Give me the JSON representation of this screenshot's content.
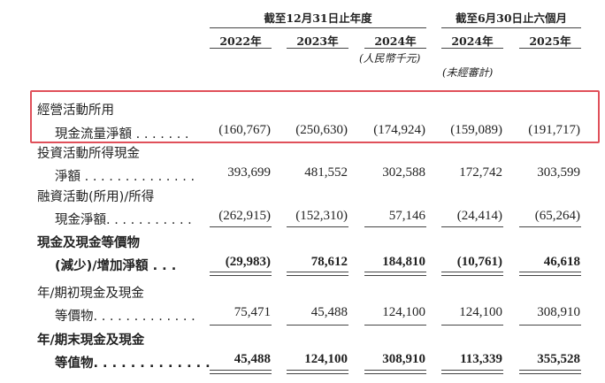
{
  "header": {
    "group_year": "截至12月31日止年度",
    "group_half": "截至6月30日止六個月",
    "columns": [
      "2022年",
      "2023年",
      "2024年",
      "2024年",
      "2025年"
    ],
    "unit_note": "(人民幣千元)",
    "unaudited_note": "(未經審計)"
  },
  "highlight_color": "#e0505a",
  "rows": [
    {
      "label1": "經營活動所用",
      "label2": "現金流量淨額 . . . . . . .",
      "values": [
        "(160,767)",
        "(250,630)",
        "(174,924)",
        "(159,089)",
        "(191,717)"
      ],
      "bold": false
    },
    {
      "label1": "投資活動所得現金",
      "label2": "淨額 . . . . . . . . . . . . . .",
      "values": [
        "393,699",
        "481,552",
        "302,588",
        "172,742",
        "303,599"
      ],
      "bold": false
    },
    {
      "label1": "融資活動(所用)/所得",
      "label2": "現金淨額. . . . . . . . . . .",
      "values": [
        "(262,915)",
        "(152,310)",
        "57,146",
        "(24,414)",
        "(65,264)"
      ],
      "bold": false
    },
    {
      "label1": "現金及現金等價物",
      "label2": "(減少)/增加淨額 . . .",
      "values": [
        "(29,983)",
        "78,612",
        "184,810",
        "(10,761)",
        "46,618"
      ],
      "bold": true
    },
    {
      "label1": "年/期初現金及現金",
      "label2": "等價物. . . . . . . . . . . . .",
      "values": [
        "75,471",
        "45,488",
        "124,100",
        "124,100",
        "308,910"
      ],
      "bold": false
    },
    {
      "label1": "年/期末現金及現金",
      "label2": "等值物. . . . . . . . . . . . .",
      "values": [
        "45,488",
        "124,100",
        "308,910",
        "113,339",
        "355,528"
      ],
      "bold": true
    }
  ]
}
